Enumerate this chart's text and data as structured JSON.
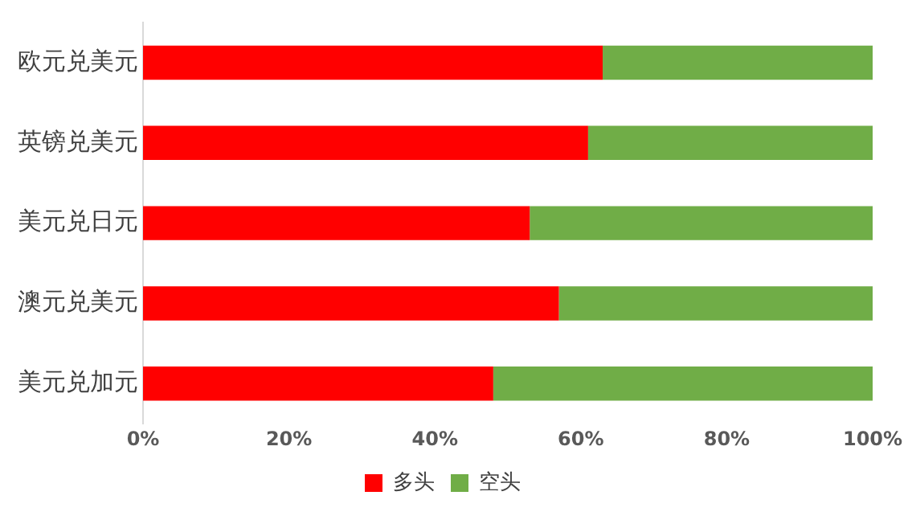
{
  "chart_data": {
    "type": "bar",
    "orientation": "horizontal",
    "stacked": true,
    "categories": [
      "欧元兑美元",
      "英镑兑美元",
      "美元兑日元",
      "澳元兑美元",
      "美元兑加元"
    ],
    "series": [
      {
        "name": "多头",
        "color": "#ff0000",
        "values": [
          63,
          61,
          53,
          57,
          48
        ]
      },
      {
        "name": "空头",
        "color": "#70ad47",
        "values": [
          37,
          39,
          47,
          43,
          52
        ]
      }
    ],
    "xlim": [
      0,
      100
    ],
    "xticks": [
      {
        "value": 0,
        "label": "0%"
      },
      {
        "value": 20,
        "label": "20%"
      },
      {
        "value": 40,
        "label": "40%"
      },
      {
        "value": 60,
        "label": "60%"
      },
      {
        "value": 80,
        "label": "80%"
      },
      {
        "value": 100,
        "label": "100%"
      }
    ],
    "grid": false,
    "legend": "bottom"
  }
}
